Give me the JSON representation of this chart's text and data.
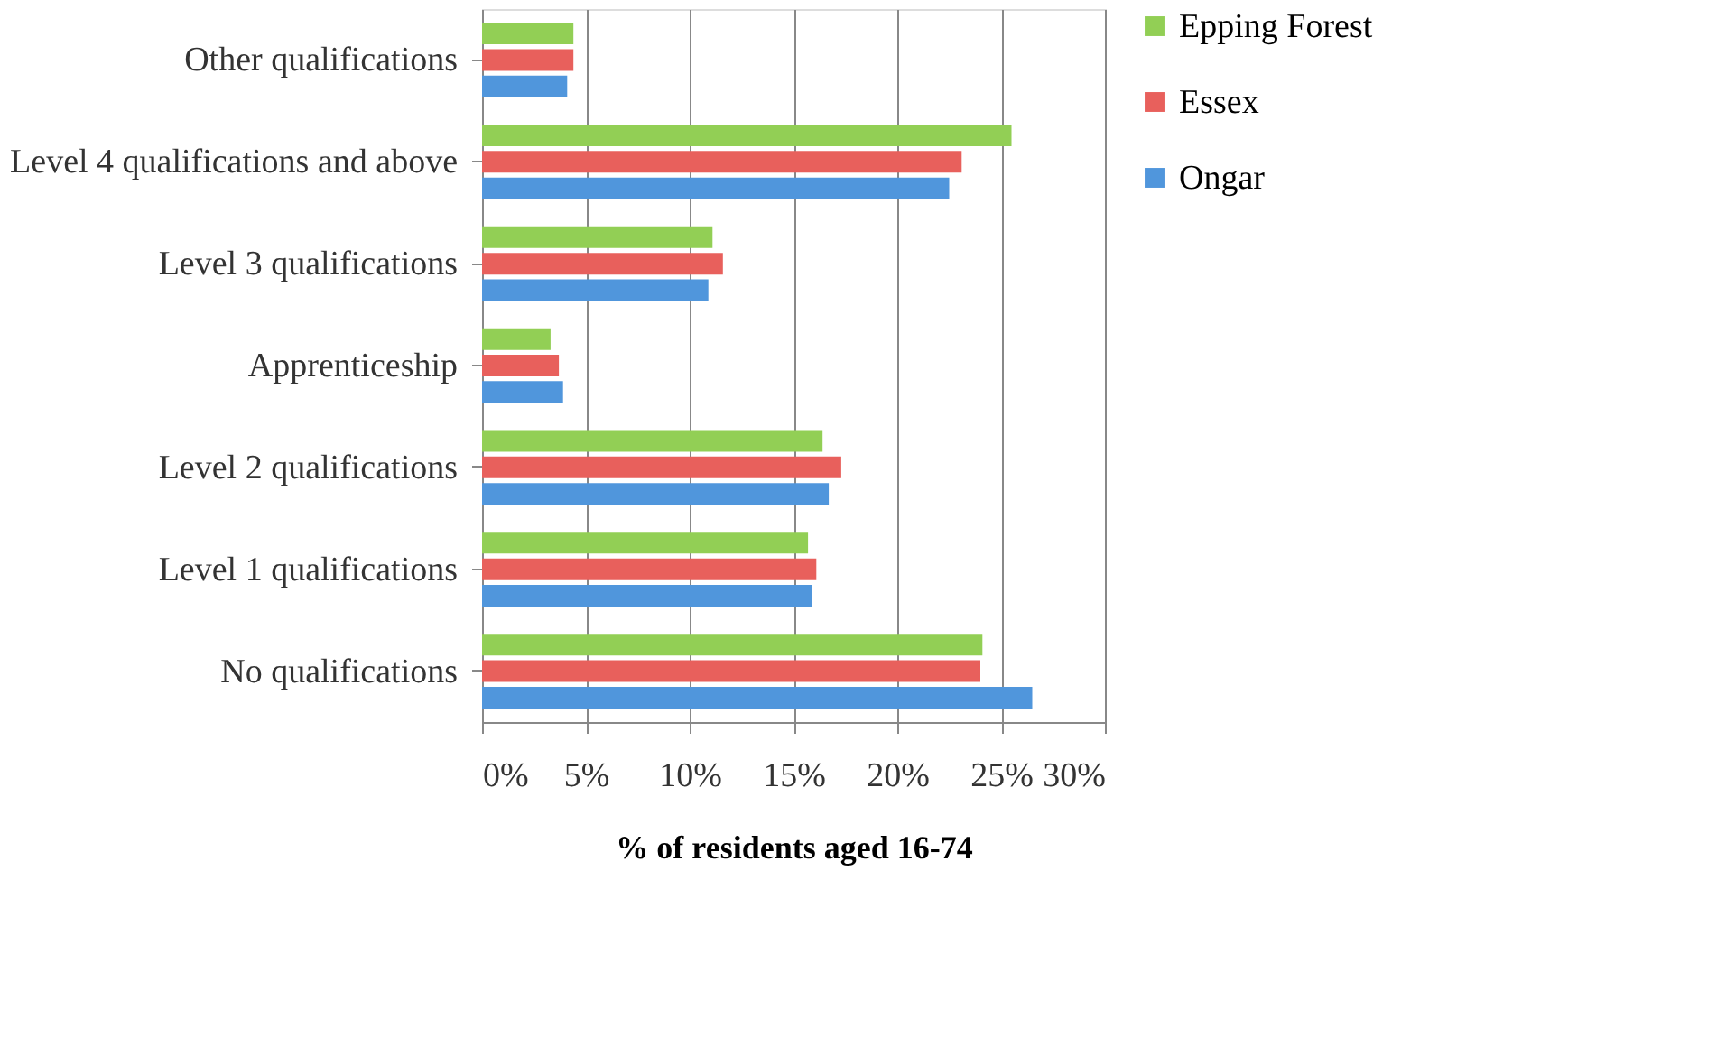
{
  "chart_data": {
    "type": "bar",
    "orientation": "horizontal",
    "xlabel": "% of residents aged 16-74",
    "categories": [
      "Other qualifications",
      "Level 4 qualifications and above",
      "Level 3 qualifications",
      "Apprenticeship",
      "Level 2 qualifications",
      "Level 1 qualifications",
      "No qualifications"
    ],
    "series": [
      {
        "name": "Epping Forest",
        "color": "#92cf55",
        "values": [
          4.4,
          25.5,
          11.1,
          3.3,
          16.4,
          15.7,
          24.1
        ]
      },
      {
        "name": "Essex",
        "color": "#e8605c",
        "values": [
          4.4,
          23.1,
          11.6,
          3.7,
          17.3,
          16.1,
          24.0
        ]
      },
      {
        "name": "Ongar",
        "color": "#5096dc",
        "values": [
          4.1,
          22.5,
          10.9,
          3.9,
          16.7,
          15.9,
          26.5
        ]
      }
    ],
    "xlim": [
      0,
      30
    ],
    "xticks": [
      {
        "value": 0,
        "label": "0%"
      },
      {
        "value": 5,
        "label": "5%"
      },
      {
        "value": 10,
        "label": "10%"
      },
      {
        "value": 15,
        "label": "15%"
      },
      {
        "value": 20,
        "label": "20%"
      },
      {
        "value": 25,
        "label": "25%"
      },
      {
        "value": 30,
        "label": "30%"
      }
    ],
    "grid": "x",
    "legend": "right"
  }
}
